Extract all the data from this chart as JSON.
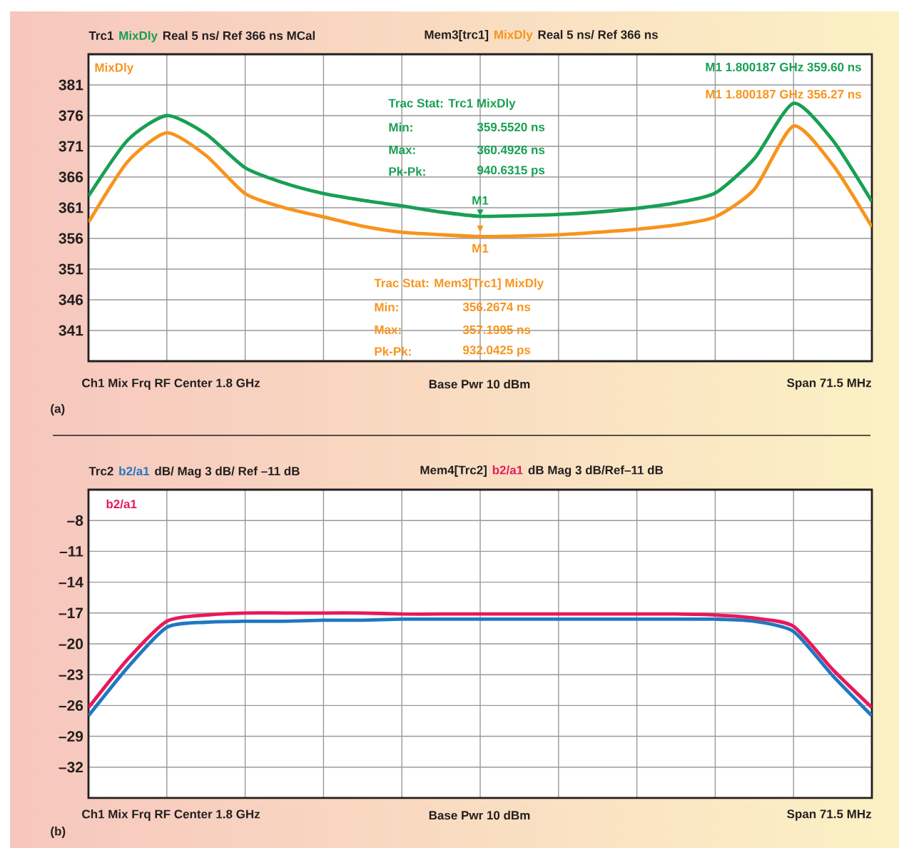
{
  "chart_data": [
    {
      "type": "line",
      "categories": [
        null,
        null,
        null,
        null,
        null,
        null,
        null,
        null,
        null,
        null,
        null,
        null,
        null,
        null,
        null,
        null,
        null,
        null,
        null,
        null,
        null
      ],
      "series": [
        {
          "color": "#f7941d",
          "values": [
            358.6,
            368.5,
            373.2,
            369.5,
            363.3,
            361.0,
            359.5,
            358.0,
            357.0,
            356.6,
            356.3,
            356.4,
            356.6,
            357.0,
            357.5,
            358.2,
            359.5,
            364.0,
            374.3,
            368.0,
            357.9
          ]
        },
        {
          "color": "#17a052",
          "values": [
            362.9,
            372.0,
            376.0,
            373.0,
            367.5,
            365.0,
            363.3,
            362.2,
            361.3,
            360.3,
            359.6,
            359.7,
            359.9,
            360.3,
            360.9,
            361.8,
            363.4,
            369.0,
            378.0,
            372.0,
            362.0
          ]
        }
      ],
      "ylim": [
        336,
        386
      ],
      "yticks": [
        341,
        346,
        351,
        356,
        361,
        366,
        371,
        376,
        381
      ],
      "grid": true,
      "annotations": [
        "Trc1",
        "MixDly",
        "Real 5 ns/ Ref 366 ns MCal",
        "Mem3[trc1]",
        "MixDly",
        "Real 5 ns/ Ref 366 ns",
        "MixDly",
        "M1 1.800187 GHz 359.60 ns",
        "M1 1.800187 GHz 356.27 ns",
        "Trac Stat: Trc1 MixDly",
        "Min:",
        "359.5520 ns",
        "Max:",
        "360.4926 ns",
        "Pk-Pk:",
        "940.6315 ps",
        {
          "text": "M1",
          "y": 359.6
        },
        {
          "text": "M1",
          "y": 356.27
        },
        "Trac Stat: Mem3[Trc1] MixDly",
        "Min:",
        "356.2674 ns",
        "Max:",
        "357.1995 ns",
        "Pk-Pk:",
        "932.0425 ps",
        "Ch1 Mix Frq RF Center 1.8 GHz",
        "Base Pwr 10 dBm",
        "Span 71.5 MHz",
        "(a)",
        {
          "text": "▼",
          "y": 359.6
        },
        {
          "text": "▼",
          "y": 356.27
        }
      ]
    },
    {
      "type": "line",
      "categories": [
        null,
        null,
        null,
        null,
        null,
        null,
        null,
        null,
        null,
        null,
        null,
        null,
        null,
        null,
        null,
        null,
        null,
        null,
        null,
        null,
        null
      ],
      "series": [
        {
          "color": "#1f78c1",
          "values": [
            -27.0,
            -22.3,
            -18.4,
            -17.9,
            -17.8,
            -17.8,
            -17.7,
            -17.7,
            -17.6,
            -17.6,
            -17.6,
            -17.6,
            -17.6,
            -17.6,
            -17.6,
            -17.6,
            -17.6,
            -17.8,
            -18.8,
            -23.1,
            -27.0
          ]
        },
        {
          "color": "#e8185a",
          "values": [
            -26.2,
            -21.5,
            -17.8,
            -17.2,
            -17.0,
            -17.0,
            -17.0,
            -17.0,
            -17.1,
            -17.1,
            -17.1,
            -17.1,
            -17.1,
            -17.1,
            -17.1,
            -17.1,
            -17.2,
            -17.5,
            -18.3,
            -22.5,
            -26.2
          ]
        }
      ],
      "ylim": [
        -35,
        -5
      ],
      "yticks": [
        {
          "value": -32,
          "label": "–32"
        },
        {
          "value": -29,
          "label": "–29"
        },
        {
          "value": -26,
          "label": "–26"
        },
        {
          "value": -23,
          "label": "–23"
        },
        {
          "value": -20,
          "label": "–20"
        },
        {
          "value": -17,
          "label": "–17"
        },
        {
          "value": -14,
          "label": "–14"
        },
        {
          "value": -11,
          "label": "–11"
        },
        {
          "value": -8,
          "label": "–8"
        }
      ],
      "grid": true,
      "annotations": [
        "Trc2",
        "b2/a1",
        "dB/ Mag 3 dB/ Ref –11 dB",
        "Mem4[Trc2]",
        "b2/a1",
        "dB Mag 3 dB/Ref–11 dB",
        "b2/a1",
        "Ch1 Mix Frq RF Center 1.8 GHz",
        "Base Pwr 10 dBm",
        "Span 71.5 MHz",
        "(b)"
      ]
    }
  ]
}
